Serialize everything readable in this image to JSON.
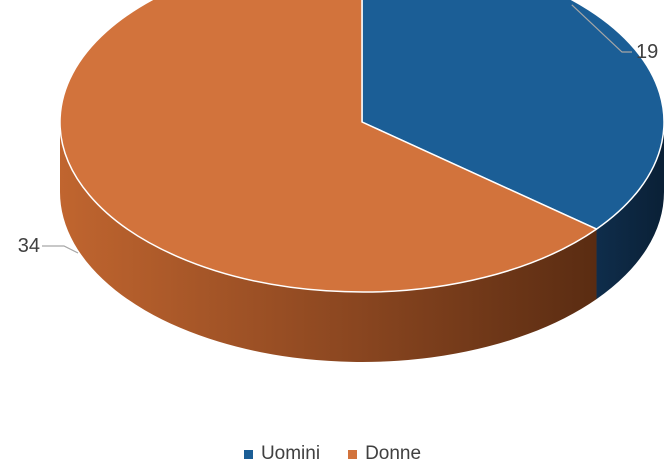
{
  "chart_data": {
    "type": "pie",
    "title": "",
    "categories": [
      "Uomini",
      "Donne"
    ],
    "values": [
      19,
      34
    ],
    "colors": [
      "#1b5e96",
      "#d2733c"
    ],
    "side_colors": [
      "#10304f",
      "#7a3f1c"
    ],
    "data_labels": [
      "19",
      "34"
    ],
    "legend_position": "bottom",
    "start_angle_deg": 90,
    "direction": "clockwise",
    "three_d": true
  }
}
